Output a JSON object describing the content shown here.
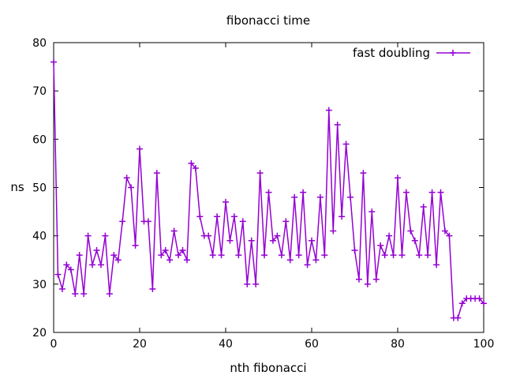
{
  "chart_data": {
    "type": "line",
    "title": "fibonacci time",
    "xlabel": "nth fibonacci",
    "ylabel": "ns",
    "xlim": [
      0,
      100
    ],
    "ylim": [
      20,
      80
    ],
    "xticks": [
      0,
      20,
      40,
      60,
      80,
      100
    ],
    "yticks": [
      20,
      30,
      40,
      50,
      60,
      70,
      80
    ],
    "grid": false,
    "legend_position": "top-right",
    "series": [
      {
        "name": "fast doubling",
        "color": "#9400d3",
        "marker": "plus",
        "x": [
          0,
          1,
          2,
          3,
          4,
          5,
          6,
          7,
          8,
          9,
          10,
          11,
          12,
          13,
          14,
          15,
          16,
          17,
          18,
          19,
          20,
          21,
          22,
          23,
          24,
          25,
          26,
          27,
          28,
          29,
          30,
          31,
          32,
          33,
          34,
          35,
          36,
          37,
          38,
          39,
          40,
          41,
          42,
          43,
          44,
          45,
          46,
          47,
          48,
          49,
          50,
          51,
          52,
          53,
          54,
          55,
          56,
          57,
          58,
          59,
          60,
          61,
          62,
          63,
          64,
          65,
          66,
          67,
          68,
          69,
          70,
          71,
          72,
          73,
          74,
          75,
          76,
          77,
          78,
          79,
          80,
          81,
          82,
          83,
          84,
          85,
          86,
          87,
          88,
          89,
          90,
          91,
          92,
          93,
          94,
          95,
          96,
          97,
          98,
          99,
          100
        ],
        "y": [
          76,
          32,
          29,
          34,
          33,
          28,
          36,
          28,
          40,
          34,
          37,
          34,
          40,
          28,
          36,
          35,
          43,
          52,
          50,
          38,
          58,
          43,
          43,
          29,
          53,
          36,
          37,
          35,
          41,
          36,
          37,
          35,
          55,
          54,
          44,
          40,
          40,
          36,
          44,
          36,
          47,
          39,
          44,
          36,
          43,
          30,
          39,
          30,
          53,
          36,
          49,
          39,
          40,
          36,
          43,
          35,
          48,
          36,
          49,
          34,
          39,
          35,
          48,
          36,
          66,
          41,
          63,
          44,
          59,
          48,
          37,
          31,
          53,
          30,
          45,
          31,
          38,
          36,
          40,
          36,
          52,
          36,
          49,
          41,
          39,
          36,
          46,
          36,
          49,
          34,
          49,
          41,
          40,
          23,
          23,
          26,
          27,
          27,
          27,
          27,
          26
        ]
      }
    ]
  }
}
